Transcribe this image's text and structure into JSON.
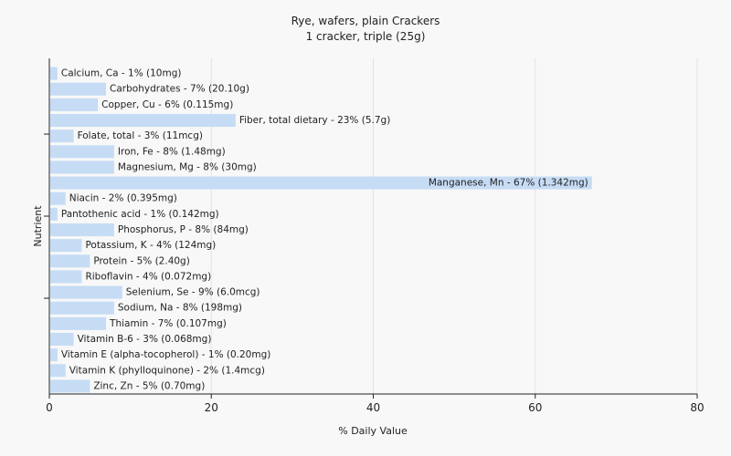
{
  "chart_data": {
    "type": "bar",
    "orientation": "horizontal",
    "title": "Rye, wafers, plain Crackers",
    "subtitle": "1 cracker, triple (25g)",
    "xlabel": "% Daily Value",
    "ylabel": "Nutrient",
    "xlim": [
      0,
      80
    ],
    "xticks": [
      0,
      20,
      40,
      60,
      80
    ],
    "grid": true,
    "bar_color": "#c6dcf5",
    "categories": [
      "Calcium, Ca - 1% (10mg)",
      "Carbohydrates - 7% (20.10g)",
      "Copper, Cu - 6% (0.115mg)",
      "Fiber, total dietary - 23% (5.7g)",
      "Folate, total - 3% (11mcg)",
      "Iron, Fe - 8% (1.48mg)",
      "Magnesium, Mg - 8% (30mg)",
      "Manganese, Mn - 67% (1.342mg)",
      "Niacin - 2% (0.395mg)",
      "Pantothenic acid - 1% (0.142mg)",
      "Phosphorus, P - 8% (84mg)",
      "Potassium, K - 4% (124mg)",
      "Protein - 5% (2.40g)",
      "Riboflavin - 4% (0.072mg)",
      "Selenium, Se - 9% (6.0mcg)",
      "Sodium, Na - 8% (198mg)",
      "Thiamin - 7% (0.107mg)",
      "Vitamin B-6 - 3% (0.068mg)",
      "Vitamin E (alpha-tocopherol) - 1% (0.20mg)",
      "Vitamin K (phylloquinone) - 2% (1.4mcg)",
      "Zinc, Zn - 5% (0.70mg)"
    ],
    "values": [
      1,
      7,
      6,
      23,
      3,
      8,
      8,
      67,
      2,
      1,
      8,
      4,
      5,
      4,
      9,
      8,
      7,
      3,
      1,
      2,
      5
    ]
  }
}
